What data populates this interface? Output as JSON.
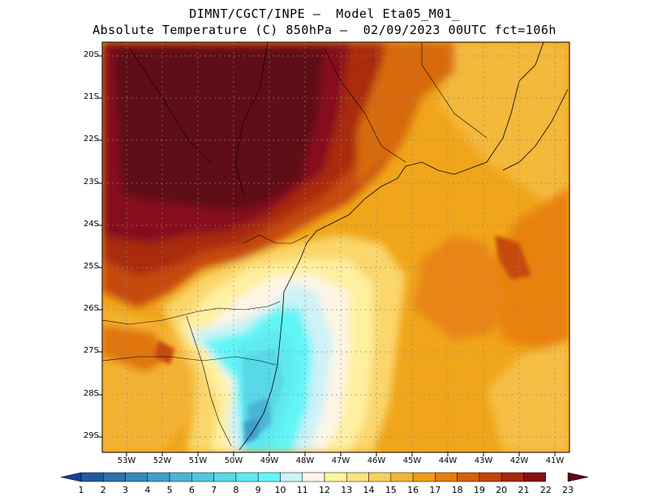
{
  "title_line1": "DIMNT/CGCT/INPE –  Model Eta05_M01_",
  "title_line2": "Absolute Temperature (C) 850hPa –  02/09/2023 00UTC fct=106h",
  "lat_labels": [
    "20S",
    "21S",
    "22S",
    "23S",
    "24S",
    "25S",
    "26S",
    "27S",
    "28S",
    "29S"
  ],
  "lon_labels": [
    "53W",
    "52W",
    "51W",
    "50W",
    "49W",
    "48W",
    "47W",
    "46W",
    "45W",
    "44W",
    "43W",
    "42W",
    "41W"
  ],
  "colorbar": {
    "labels": [
      "1",
      "2",
      "3",
      "4",
      "5",
      "6",
      "7",
      "8",
      "9",
      "10",
      "11",
      "12",
      "13",
      "14",
      "15",
      "16",
      "17",
      "18",
      "19",
      "20",
      "21",
      "22",
      "23"
    ],
    "colors": [
      "#1b3f95",
      "#1f5ba0",
      "#2a72ae",
      "#3589bd",
      "#3f9fca",
      "#4bb5d6",
      "#50c7df",
      "#58d8e8",
      "#5ee9f0",
      "#62f5f7",
      "#cdf2f8",
      "#fdf5e6",
      "#fff2a0",
      "#fde27c",
      "#f8cf5c",
      "#f3b637",
      "#f09c18",
      "#e47c0e",
      "#d65f08",
      "#c34406",
      "#a9270c",
      "#861011",
      "#5e0a16"
    ]
  }
}
